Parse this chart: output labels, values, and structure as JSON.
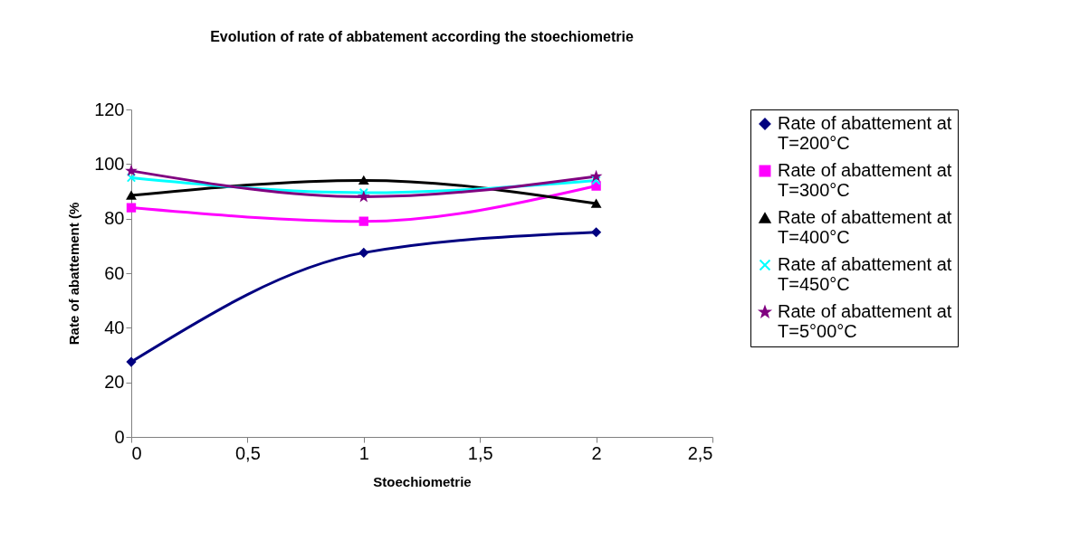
{
  "chart_data": {
    "type": "line",
    "title": "Evolution of rate of abbatement according the stoechiometrie",
    "xlabel": "Stoechiometrie",
    "ylabel": "Rate of abattement (%",
    "x": [
      0,
      1,
      2
    ],
    "xlim": [
      0,
      2.5
    ],
    "xticks": [
      0,
      {
        "value": 0.5,
        "label": "0,5"
      },
      1,
      {
        "value": 1.5,
        "label": "1,5"
      },
      2,
      {
        "value": 2.5,
        "label": "2,5"
      }
    ],
    "ylim": [
      0,
      120
    ],
    "yticks": [
      0,
      20,
      40,
      60,
      80,
      100,
      120
    ],
    "grid": false,
    "legend": "right",
    "line_style": "solid",
    "series": [
      {
        "name": "Rate of abattement at T=200°C",
        "color": "#000080",
        "marker": "diamond",
        "values": [
          27.5,
          67.5,
          75
        ]
      },
      {
        "name": "Rate of abattement at T=300°C",
        "color": "#ff00ff",
        "marker": "square",
        "values": [
          84,
          79,
          92
        ]
      },
      {
        "name": "Rate of abattement at T=400°C",
        "color": "#000000",
        "marker": "triangle",
        "values": [
          88.5,
          94,
          85.5
        ]
      },
      {
        "name": "Rate af abattement at T=450°C",
        "color": "#00ffff",
        "marker": "cross",
        "values": [
          95,
          89.5,
          94
        ]
      },
      {
        "name": "Rate of abattement at T=5°00°C",
        "color": "#800080",
        "marker": "star",
        "values": [
          97.5,
          88,
          95.5
        ]
      }
    ]
  }
}
